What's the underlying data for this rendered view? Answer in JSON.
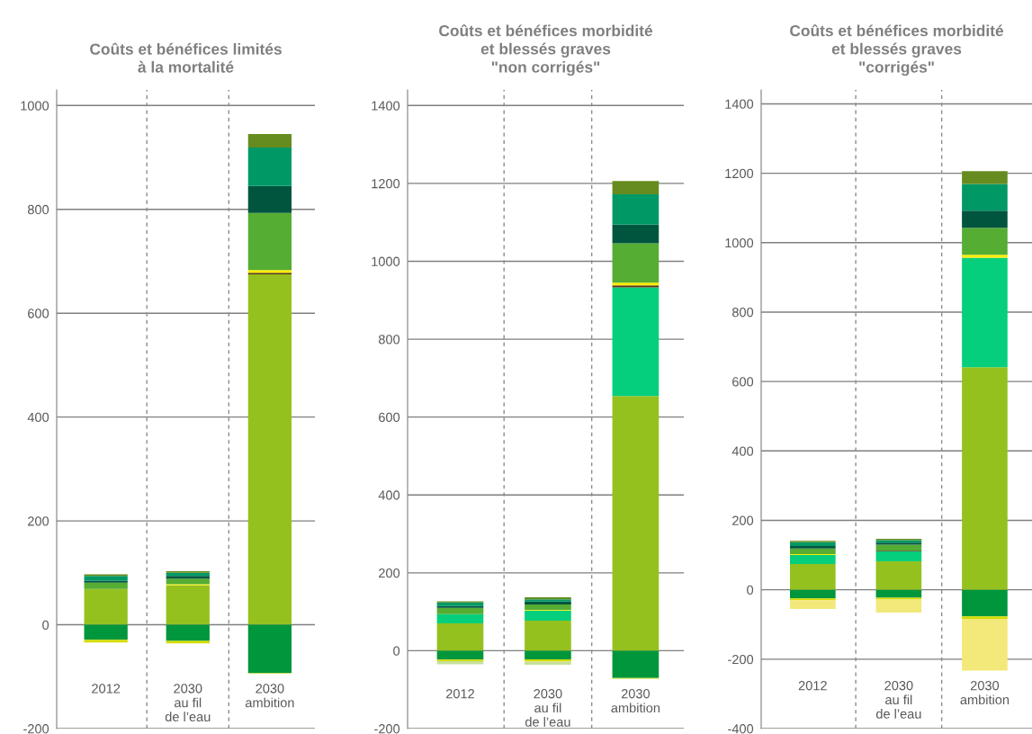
{
  "chart_data": [
    {
      "type": "bar",
      "stacked": true,
      "title": "Coûts et bénéfices limités\nà la mortalité",
      "categories": [
        "2012",
        "2030\nau fil\nde l’eau",
        "2030\nambition"
      ],
      "ylim": [
        -200,
        1030
      ],
      "yticks": [
        -200,
        0,
        200,
        400,
        600,
        800,
        1000
      ],
      "grid": "y",
      "series": [
        {
          "color": "#95c11f",
          "values": [
            69,
            76,
            675
          ]
        },
        {
          "color": "#5a3a1a",
          "values": [
            null,
            null,
            3
          ]
        },
        {
          "color": "#ffed00",
          "values": [
            null,
            2,
            5
          ]
        },
        {
          "color": "#55ad33",
          "values": [
            12,
            11,
            110
          ]
        },
        {
          "color": "#00553e",
          "values": [
            4,
            5,
            52
          ]
        },
        {
          "color": "#009966",
          "values": [
            9,
            6,
            74
          ]
        },
        {
          "color": "#668c1f",
          "values": [
            3,
            3,
            26
          ]
        },
        {
          "color": "#00963c",
          "values": [
            -29,
            -31,
            -93
          ]
        },
        {
          "color": "#d4dc00",
          "values": [
            -5,
            -5,
            -1
          ]
        }
      ]
    },
    {
      "type": "bar",
      "stacked": true,
      "title": "Coûts et bénéfices morbidité\net blessés graves\n\"non corrigés\"",
      "categories": [
        "2012",
        "2030\nau fil\nde l’eau",
        "2030\nambition"
      ],
      "ylim": [
        -200,
        1440
      ],
      "yticks": [
        -200,
        0,
        200,
        400,
        600,
        800,
        1000,
        1200,
        1400
      ],
      "grid": "y",
      "series": [
        {
          "color": "#95c11f",
          "values": [
            70,
            77,
            654
          ]
        },
        {
          "color": "#05cf7c",
          "values": [
            24,
            26,
            279
          ]
        },
        {
          "color": "#5a3a1a",
          "values": [
            null,
            null,
            5
          ]
        },
        {
          "color": "#ffed00",
          "values": [
            null,
            2,
            7
          ]
        },
        {
          "color": "#55ad33",
          "values": [
            16,
            14,
            101
          ]
        },
        {
          "color": "#00553e",
          "values": [
            5,
            7,
            48
          ]
        },
        {
          "color": "#009966",
          "values": [
            9,
            6,
            78
          ]
        },
        {
          "color": "#668c1f",
          "values": [
            3,
            5,
            34
          ]
        },
        {
          "color": "#00963c",
          "values": [
            -23,
            -22,
            -70
          ]
        },
        {
          "color": "#d4dc00",
          "values": [
            -4,
            -6,
            -2
          ]
        },
        {
          "color": "#c5e09b",
          "values": [
            -8,
            -8,
            null
          ]
        }
      ]
    },
    {
      "type": "bar",
      "stacked": true,
      "title": "Coûts et bénéfices morbidité\net blessés graves\n\"corrigés\"",
      "categories": [
        "2012",
        "2030\nau fil\nde l’eau",
        "2030\nambition"
      ],
      "ylim": [
        -400,
        1440
      ],
      "yticks": [
        -400,
        -200,
        0,
        200,
        400,
        600,
        800,
        1000,
        1200,
        1400
      ],
      "grid": "y",
      "series": [
        {
          "color": "#95c11f",
          "values": [
            74,
            82,
            641
          ]
        },
        {
          "color": "#05cf7c",
          "values": [
            26,
            29,
            316
          ]
        },
        {
          "color": "#5a3a1a",
          "values": [
            null,
            2,
            null
          ]
        },
        {
          "color": "#ffed00",
          "values": [
            3,
            null,
            8
          ]
        },
        {
          "color": "#55ad33",
          "values": [
            16,
            17,
            78
          ]
        },
        {
          "color": "#00553e",
          "values": [
            7,
            6,
            49
          ]
        },
        {
          "color": "#009966",
          "values": [
            11,
            7,
            77
          ]
        },
        {
          "color": "#668c1f",
          "values": [
            4,
            4,
            37
          ]
        },
        {
          "color": "#00963c",
          "values": [
            -25,
            -23,
            -77
          ]
        },
        {
          "color": "#d4dc00",
          "values": [
            -5,
            -5,
            -8
          ]
        },
        {
          "color": "#f2e97a",
          "values": [
            -25,
            -38,
            -148
          ]
        }
      ]
    }
  ]
}
